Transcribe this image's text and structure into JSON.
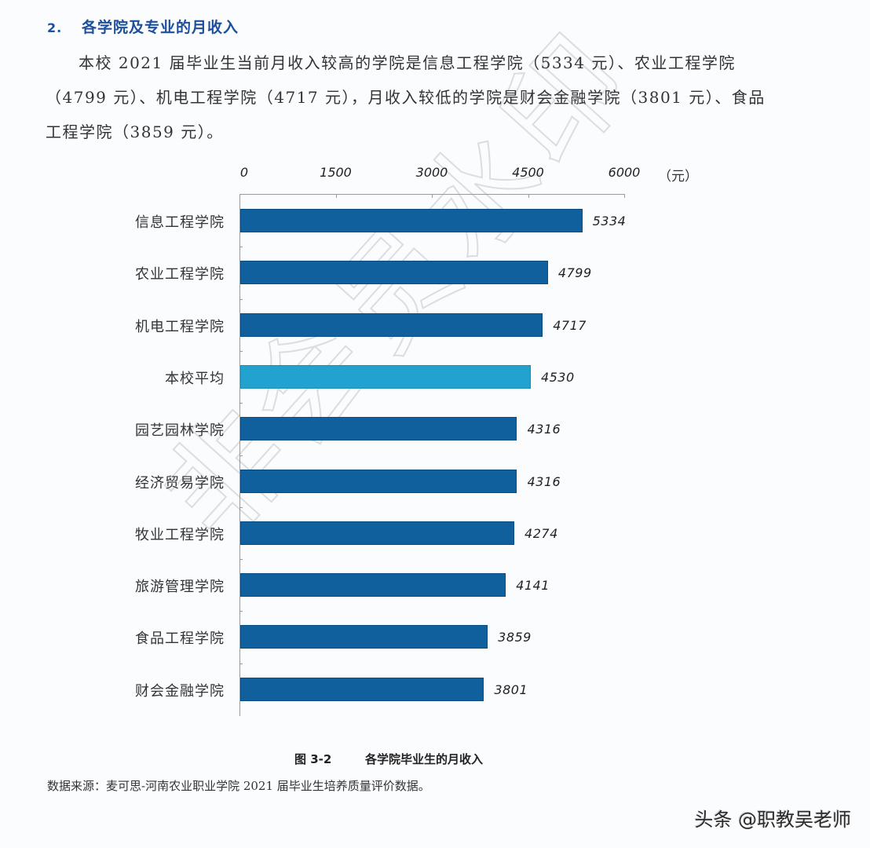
{
  "section": {
    "number": "2.",
    "title": "各学院及专业的月收入"
  },
  "paragraph": "本校 2021 届毕业生当前月收入较高的学院是信息工程学院（5334 元）、农业工程学院（4799 元）、机电工程学院（4717 元），月收入较低的学院是财会金融学院（3801 元）、食品工程学院（3859 元）。",
  "chart_data": {
    "type": "bar",
    "orientation": "horizontal",
    "title": "各学院毕业生的月收入",
    "figure_label": "图 3-2",
    "xlabel": "",
    "unit": "（元）",
    "ylabel": "",
    "xlim": [
      0,
      6000
    ],
    "x_ticks": [
      "0",
      "1500",
      "3000",
      "4500",
      "6000"
    ],
    "grid": false,
    "legend": null,
    "categories": [
      "信息工程学院",
      "农业工程学院",
      "机电工程学院",
      "本校平均",
      "园艺园林学院",
      "经济贸易学院",
      "牧业工程学院",
      "旅游管理学院",
      "食品工程学院",
      "财会金融学院"
    ],
    "values": [
      5334,
      4799,
      4717,
      4530,
      4316,
      4316,
      4274,
      4141,
      3859,
      3801
    ],
    "highlight_index": 3,
    "colors": {
      "bar": "#10609e",
      "highlight": "#22a3cf"
    }
  },
  "caption": {
    "figure": "图 3-2",
    "title": "各学院毕业生的月收入"
  },
  "source": "数据来源：麦可思-河南农业职业学院 2021 届毕业生培养质量评价数据。",
  "watermark": "非会员水印",
  "brand": "头条 @职教吴老师"
}
